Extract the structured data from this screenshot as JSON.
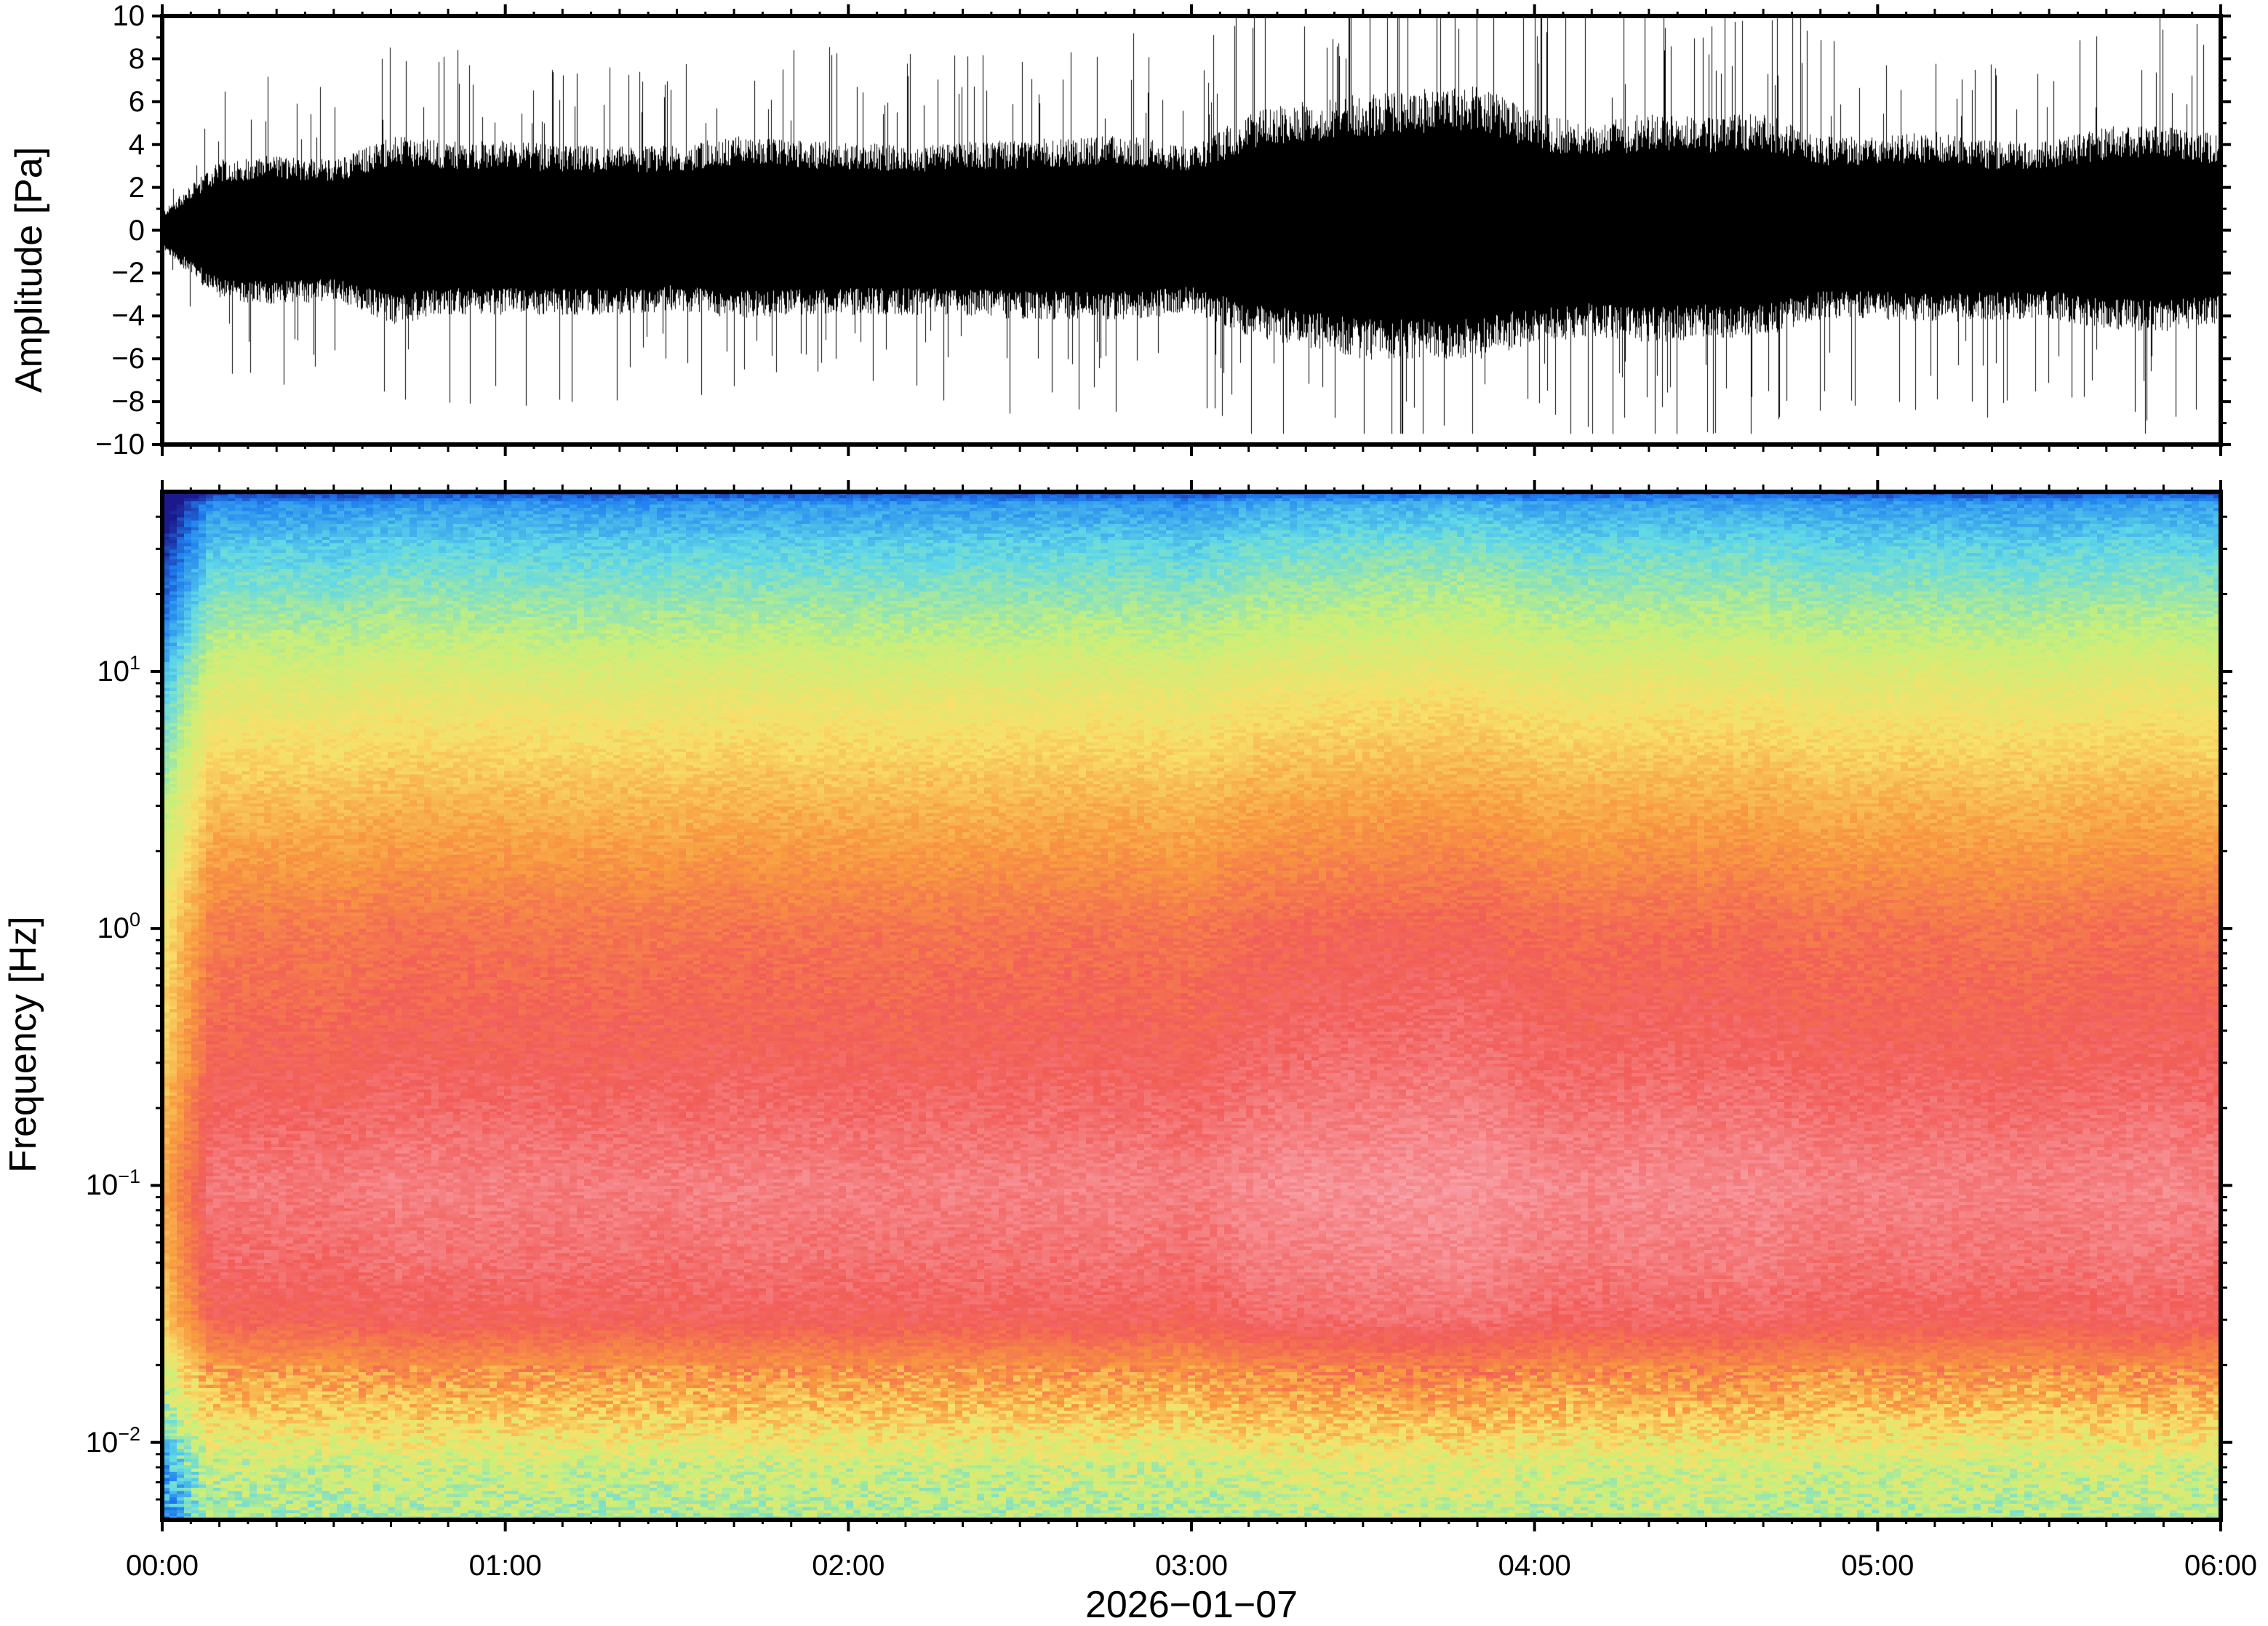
{
  "chart_data": [
    {
      "type": "line",
      "panel": "waveform",
      "ylabel": "Amplitude [Pa]",
      "ylim": [
        -10,
        10
      ],
      "yticks": [
        "10",
        "8",
        "6",
        "4",
        "2",
        "0",
        "−2",
        "−4",
        "−6",
        "−8",
        "−10"
      ],
      "ytick_values": [
        10,
        8,
        6,
        4,
        2,
        0,
        -2,
        -4,
        -6,
        -8,
        -10
      ],
      "x": [
        "00:00",
        "00:10",
        "00:20",
        "00:30",
        "00:40",
        "00:50",
        "01:00",
        "01:10",
        "01:20",
        "01:30",
        "01:40",
        "01:50",
        "02:00",
        "02:10",
        "02:20",
        "02:30",
        "02:40",
        "02:50",
        "03:00",
        "03:10",
        "03:20",
        "03:30",
        "03:40",
        "03:50",
        "04:00",
        "04:10",
        "04:20",
        "04:30",
        "04:40",
        "04:50",
        "05:00",
        "05:10",
        "05:20",
        "05:30",
        "05:40",
        "05:50",
        "06:00"
      ],
      "envelope_upper": [
        0.8,
        3.0,
        3.2,
        3.0,
        4.0,
        3.8,
        3.8,
        3.6,
        3.6,
        3.6,
        4.0,
        3.8,
        3.8,
        3.6,
        3.8,
        3.8,
        4.0,
        4.0,
        3.5,
        5.0,
        5.5,
        5.8,
        6.0,
        6.2,
        5.0,
        4.5,
        5.0,
        4.8,
        5.0,
        4.0,
        4.0,
        4.2,
        3.8,
        3.8,
        4.4,
        4.6,
        4.0
      ],
      "envelope_lower": [
        -0.8,
        -3.0,
        -3.2,
        -3.0,
        -4.0,
        -3.6,
        -3.6,
        -3.6,
        -3.6,
        -3.4,
        -3.8,
        -3.6,
        -3.6,
        -3.6,
        -3.6,
        -3.8,
        -3.8,
        -3.8,
        -3.5,
        -4.5,
        -5.0,
        -5.5,
        -5.5,
        -5.5,
        -4.8,
        -4.5,
        -4.8,
        -4.6,
        -4.6,
        -3.8,
        -3.8,
        -4.0,
        -3.8,
        -3.8,
        -4.2,
        -4.4,
        -4.0
      ],
      "peak_max": 10,
      "peak_min": -9.5
    },
    {
      "type": "heatmap",
      "panel": "spectrogram",
      "ylabel": "Frequency [Hz]",
      "yscale": "log",
      "ylim": [
        0.005,
        50
      ],
      "yticks": [
        {
          "base": "10",
          "exp": "1",
          "value": 10
        },
        {
          "base": "10",
          "exp": "0",
          "value": 1
        },
        {
          "base": "10",
          "exp": "−1",
          "value": 0.1
        },
        {
          "base": "10",
          "exp": "−2",
          "value": 0.01
        }
      ],
      "xticks": [
        "00:00",
        "01:00",
        "02:00",
        "03:00",
        "04:00",
        "05:00",
        "06:00"
      ],
      "xlabel": "2026−01−07",
      "colormap": [
        "#1a1a8c",
        "#2080f0",
        "#60d8e8",
        "#c8f07a",
        "#f8e06a",
        "#f89a40",
        "#f25c58",
        "#f8a0a8"
      ],
      "level_by_frequency_note": "high frequencies blue-cyan, ~10 Hz green-yellow, ~1 Hz orange-red, 0.03–0.1 Hz red-pink, below 0.02 Hz yellow-green",
      "ylim_frequency_hz": [
        0.005,
        50
      ]
    }
  ]
}
